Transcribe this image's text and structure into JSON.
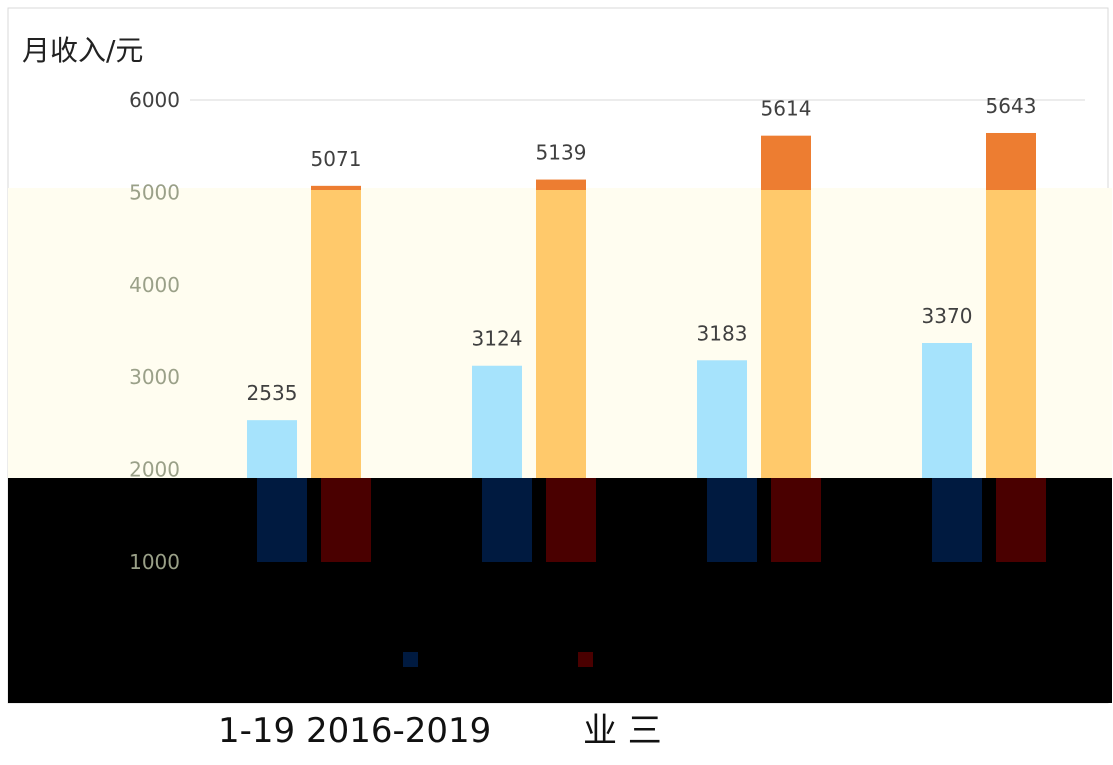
{
  "chart_data": {
    "type": "bar",
    "ylabel": "月收入/元",
    "categories": [
      "",
      "",
      "",
      ""
    ],
    "series": [
      {
        "values": [
          2535,
          3124,
          3183,
          3370
        ]
      },
      {
        "values": [
          5071,
          5139,
          5614,
          5643
        ]
      }
    ],
    "y_ticks": [
      "6000",
      "5000",
      "4000",
      "3000",
      "2000",
      "1000"
    ],
    "ylim": [
      1000,
      6000
    ],
    "grid": true,
    "legend": "bottom"
  },
  "colors": {
    "series_light": [
      "#a6e3fc",
      "#ffc96b"
    ],
    "series_dark": [
      "#001a40",
      "#4a0000"
    ],
    "top_bar": "#ed7d31",
    "band_light": "#fffdf0",
    "band_dark": "#000000",
    "grid": "#d9d9d9",
    "tick_top": "#404040",
    "tick_band": "#9aa088"
  },
  "caption": {
    "left": "1-19   2016-2019",
    "right": "业   三"
  }
}
